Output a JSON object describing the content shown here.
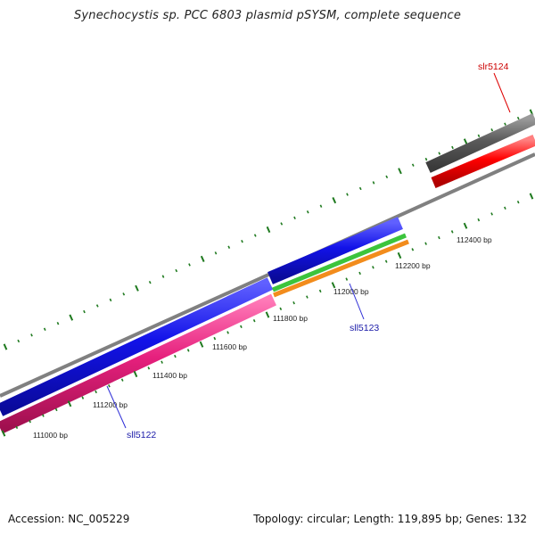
{
  "title": "Synechocystis sp. PCC 6803 plasmid pSYSM, complete sequence",
  "footer": {
    "accession": "Accession: NC_005229",
    "summary": "Topology: circular; Length: 119,895 bp; Genes: 132"
  },
  "ruler": {
    "labels": [
      "111000 bp",
      "111200 bp",
      "111400 bp",
      "111600 bp",
      "111800 bp",
      "112000 bp",
      "112200 bp",
      "112400 bp"
    ],
    "tick_color": "#1f7a1f"
  },
  "backbone_color": "#808080",
  "genes": [
    {
      "name": "sll5122",
      "strand": "reverse",
      "color": "#e6207d",
      "label_color": "#1a1aa8"
    },
    {
      "name": "sll5123",
      "strand": "reverse",
      "color": "#f28c1c",
      "label_color": "#1a1aa8"
    },
    {
      "name": "slr5124",
      "strand": "forward",
      "color": "#ff0000",
      "label_color": "#cc0000"
    }
  ],
  "features": [
    {
      "kind": "blue",
      "color": "#1212e8"
    },
    {
      "kind": "green",
      "color": "#3cc43c"
    },
    {
      "kind": "gray",
      "color": "#5a5a5a"
    }
  ]
}
